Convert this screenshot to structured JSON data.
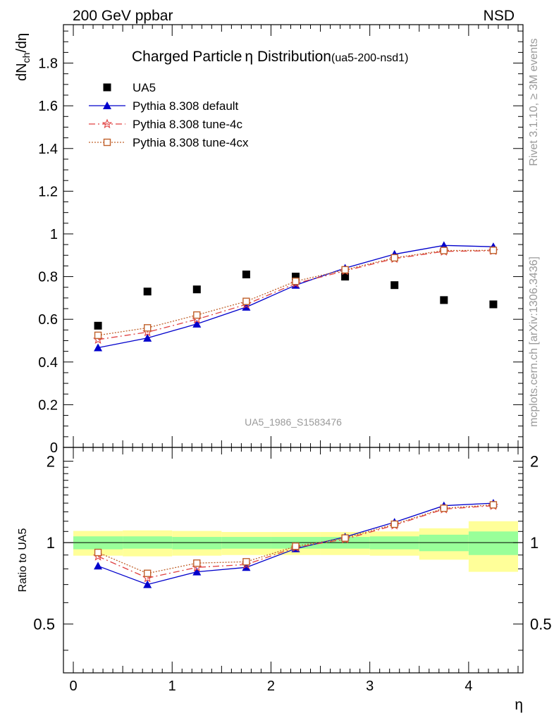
{
  "header": {
    "left": "200 GeV ppbar",
    "right": "NSD"
  },
  "side_labels": {
    "rivet": "Rivet 3.1.10, ≥ 3M events",
    "mcplots": "mcplots.cern.ch [arXiv:1306.3436]"
  },
  "chart_data": [
    {
      "type": "scatter",
      "title_main": "Charged Particle",
      "title_symbol": "η",
      "title_rest": " Distribution",
      "title_tag": "(ua5-200-nsd1)",
      "ylabel": "dNch/dη",
      "ylabel_parts": {
        "base": "dN",
        "sub": "ch",
        "rest": "/dη"
      },
      "watermark": "UA5_1986_S1583476",
      "xlim": [
        -0.1,
        4.55
      ],
      "ylim": [
        0,
        1.98
      ],
      "yticks": [
        0,
        0.2,
        0.4,
        0.6,
        0.8,
        1,
        1.2,
        1.4,
        1.6,
        1.8
      ],
      "ytick_labels": [
        "0",
        "0.2",
        "0.4",
        "0.6",
        "0.8",
        "1",
        "1.2",
        "1.4",
        "1.6",
        "1.8"
      ],
      "legend_position": "top-left",
      "x": [
        0.25,
        0.75,
        1.25,
        1.75,
        2.25,
        2.75,
        3.25,
        3.75,
        4.25
      ],
      "series": [
        {
          "name": "UA5",
          "marker": "square",
          "line": "none",
          "color": "#000000",
          "values": [
            0.57,
            0.73,
            0.74,
            0.81,
            0.8,
            0.8,
            0.76,
            0.69,
            0.67
          ]
        },
        {
          "name": "Pythia 8.308 default",
          "marker": "triangle",
          "line": "solid",
          "color": "#0000cc",
          "values": [
            0.467,
            0.512,
            0.578,
            0.657,
            0.76,
            0.84,
            0.905,
            0.946,
            0.94
          ]
        },
        {
          "name": "Pythia 8.308 tune-4c",
          "marker": "star",
          "line": "dashdot",
          "color": "#e04040",
          "values": [
            0.505,
            0.54,
            0.6,
            0.67,
            0.768,
            0.827,
            0.884,
            0.918,
            0.921
          ]
        },
        {
          "name": "Pythia 8.308 tune-4cx",
          "marker": "open-square",
          "line": "dotted",
          "color": "#c0602a",
          "values": [
            0.525,
            0.56,
            0.62,
            0.684,
            0.778,
            0.832,
            0.888,
            0.922,
            0.923
          ]
        }
      ]
    },
    {
      "type": "line",
      "ylabel": "Ratio to UA5",
      "xlabel": "η",
      "xlim": [
        -0.1,
        4.55
      ],
      "ylim": [
        0.33,
        2.25
      ],
      "xticks": [
        0,
        1,
        2,
        3,
        4
      ],
      "xtick_labels": [
        "0",
        "1",
        "2",
        "3",
        "4"
      ],
      "yticks": [
        0.5,
        1,
        2
      ],
      "ytick_labels": [
        "0.5",
        "1",
        "2"
      ],
      "reference_line": 1,
      "bands": {
        "x_edges": [
          0.0,
          0.5,
          1.0,
          1.5,
          2.0,
          2.5,
          3.0,
          3.5,
          4.0,
          4.5
        ],
        "inner_low": [
          0.945,
          0.95,
          0.945,
          0.95,
          0.95,
          0.95,
          0.945,
          0.93,
          0.9
        ],
        "inner_high": [
          1.055,
          1.055,
          1.05,
          1.05,
          1.05,
          1.05,
          1.055,
          1.07,
          1.1
        ],
        "outer_low": [
          0.895,
          0.89,
          0.895,
          0.9,
          0.9,
          0.9,
          0.895,
          0.865,
          0.78
        ],
        "outer_high": [
          1.105,
          1.11,
          1.105,
          1.095,
          1.095,
          1.095,
          1.1,
          1.13,
          1.2
        ],
        "inner_color": "#99ff99",
        "outer_color": "#ffff99"
      },
      "x": [
        0.25,
        0.75,
        1.25,
        1.75,
        2.25,
        2.75,
        3.25,
        3.75,
        4.25
      ],
      "series": [
        {
          "name": "Pythia 8.308 default",
          "marker": "triangle",
          "line": "solid",
          "color": "#0000cc",
          "values": [
            0.82,
            0.7,
            0.78,
            0.81,
            0.95,
            1.05,
            1.19,
            1.37,
            1.4
          ]
        },
        {
          "name": "Pythia 8.308 tune-4c",
          "marker": "star",
          "line": "dashdot",
          "color": "#e04040",
          "values": [
            0.89,
            0.74,
            0.81,
            0.83,
            0.96,
            1.03,
            1.16,
            1.33,
            1.37
          ]
        },
        {
          "name": "Pythia 8.308 tune-4cx",
          "marker": "open-square",
          "line": "dotted",
          "color": "#c0602a",
          "values": [
            0.92,
            0.77,
            0.84,
            0.85,
            0.97,
            1.04,
            1.17,
            1.34,
            1.38
          ]
        }
      ]
    }
  ]
}
